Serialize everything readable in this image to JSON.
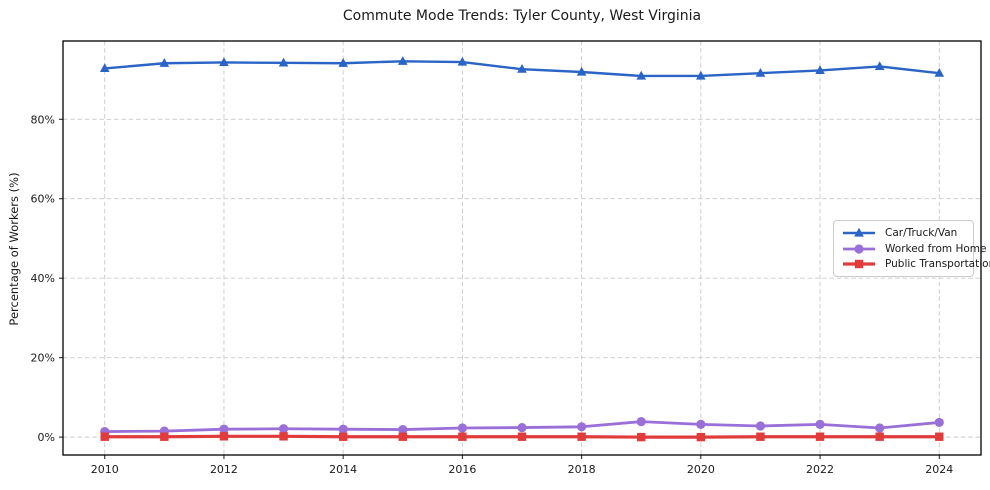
{
  "chart_data": {
    "type": "line",
    "title": "Commute Mode Trends: Tyler County, West Virginia",
    "xlabel": "",
    "ylabel": "Percentage of Workers (%)",
    "x": [
      2010,
      2011,
      2012,
      2013,
      2014,
      2015,
      2016,
      2017,
      2018,
      2019,
      2020,
      2021,
      2022,
      2023,
      2024
    ],
    "x_ticks": [
      2010,
      2012,
      2014,
      2016,
      2018,
      2020,
      2022,
      2024
    ],
    "x_tick_labels": [
      "2010",
      "2012",
      "2014",
      "2016",
      "2018",
      "2020",
      "2022",
      "2024"
    ],
    "y_ticks": [
      0,
      20,
      40,
      60,
      80
    ],
    "y_tick_labels": [
      "0%",
      "20%",
      "40%",
      "60%",
      "80%"
    ],
    "xlim": [
      2009.3,
      2024.7
    ],
    "ylim": [
      -4.5,
      99.7
    ],
    "grid": true,
    "grid_style": "dashed",
    "grid_color": "#c9c9c9",
    "legend_position": "center right",
    "series": [
      {
        "name": "Car/Truck/Van",
        "color": "#2a64c6",
        "marker": "triangle",
        "line_width": 2.4,
        "values": [
          92.8,
          94.1,
          94.3,
          94.2,
          94.1,
          94.6,
          94.4,
          92.6,
          91.9,
          90.9,
          90.9,
          91.6,
          92.3,
          93.3,
          91.6
        ]
      },
      {
        "name": "Worked from Home",
        "color": "#9a6fd8",
        "marker": "circle",
        "line_width": 2.8,
        "values": [
          1.4,
          1.5,
          2.0,
          2.1,
          2.0,
          1.9,
          2.3,
          2.4,
          2.6,
          3.9,
          3.2,
          2.8,
          3.2,
          2.3,
          3.7
        ]
      },
      {
        "name": "Public Transportation",
        "color": "#e13c3c",
        "marker": "square",
        "line_width": 3.2,
        "values": [
          0.1,
          0.1,
          0.2,
          0.2,
          0.1,
          0.1,
          0.1,
          0.1,
          0.1,
          0.0,
          0.0,
          0.1,
          0.1,
          0.1,
          0.1
        ]
      }
    ]
  }
}
